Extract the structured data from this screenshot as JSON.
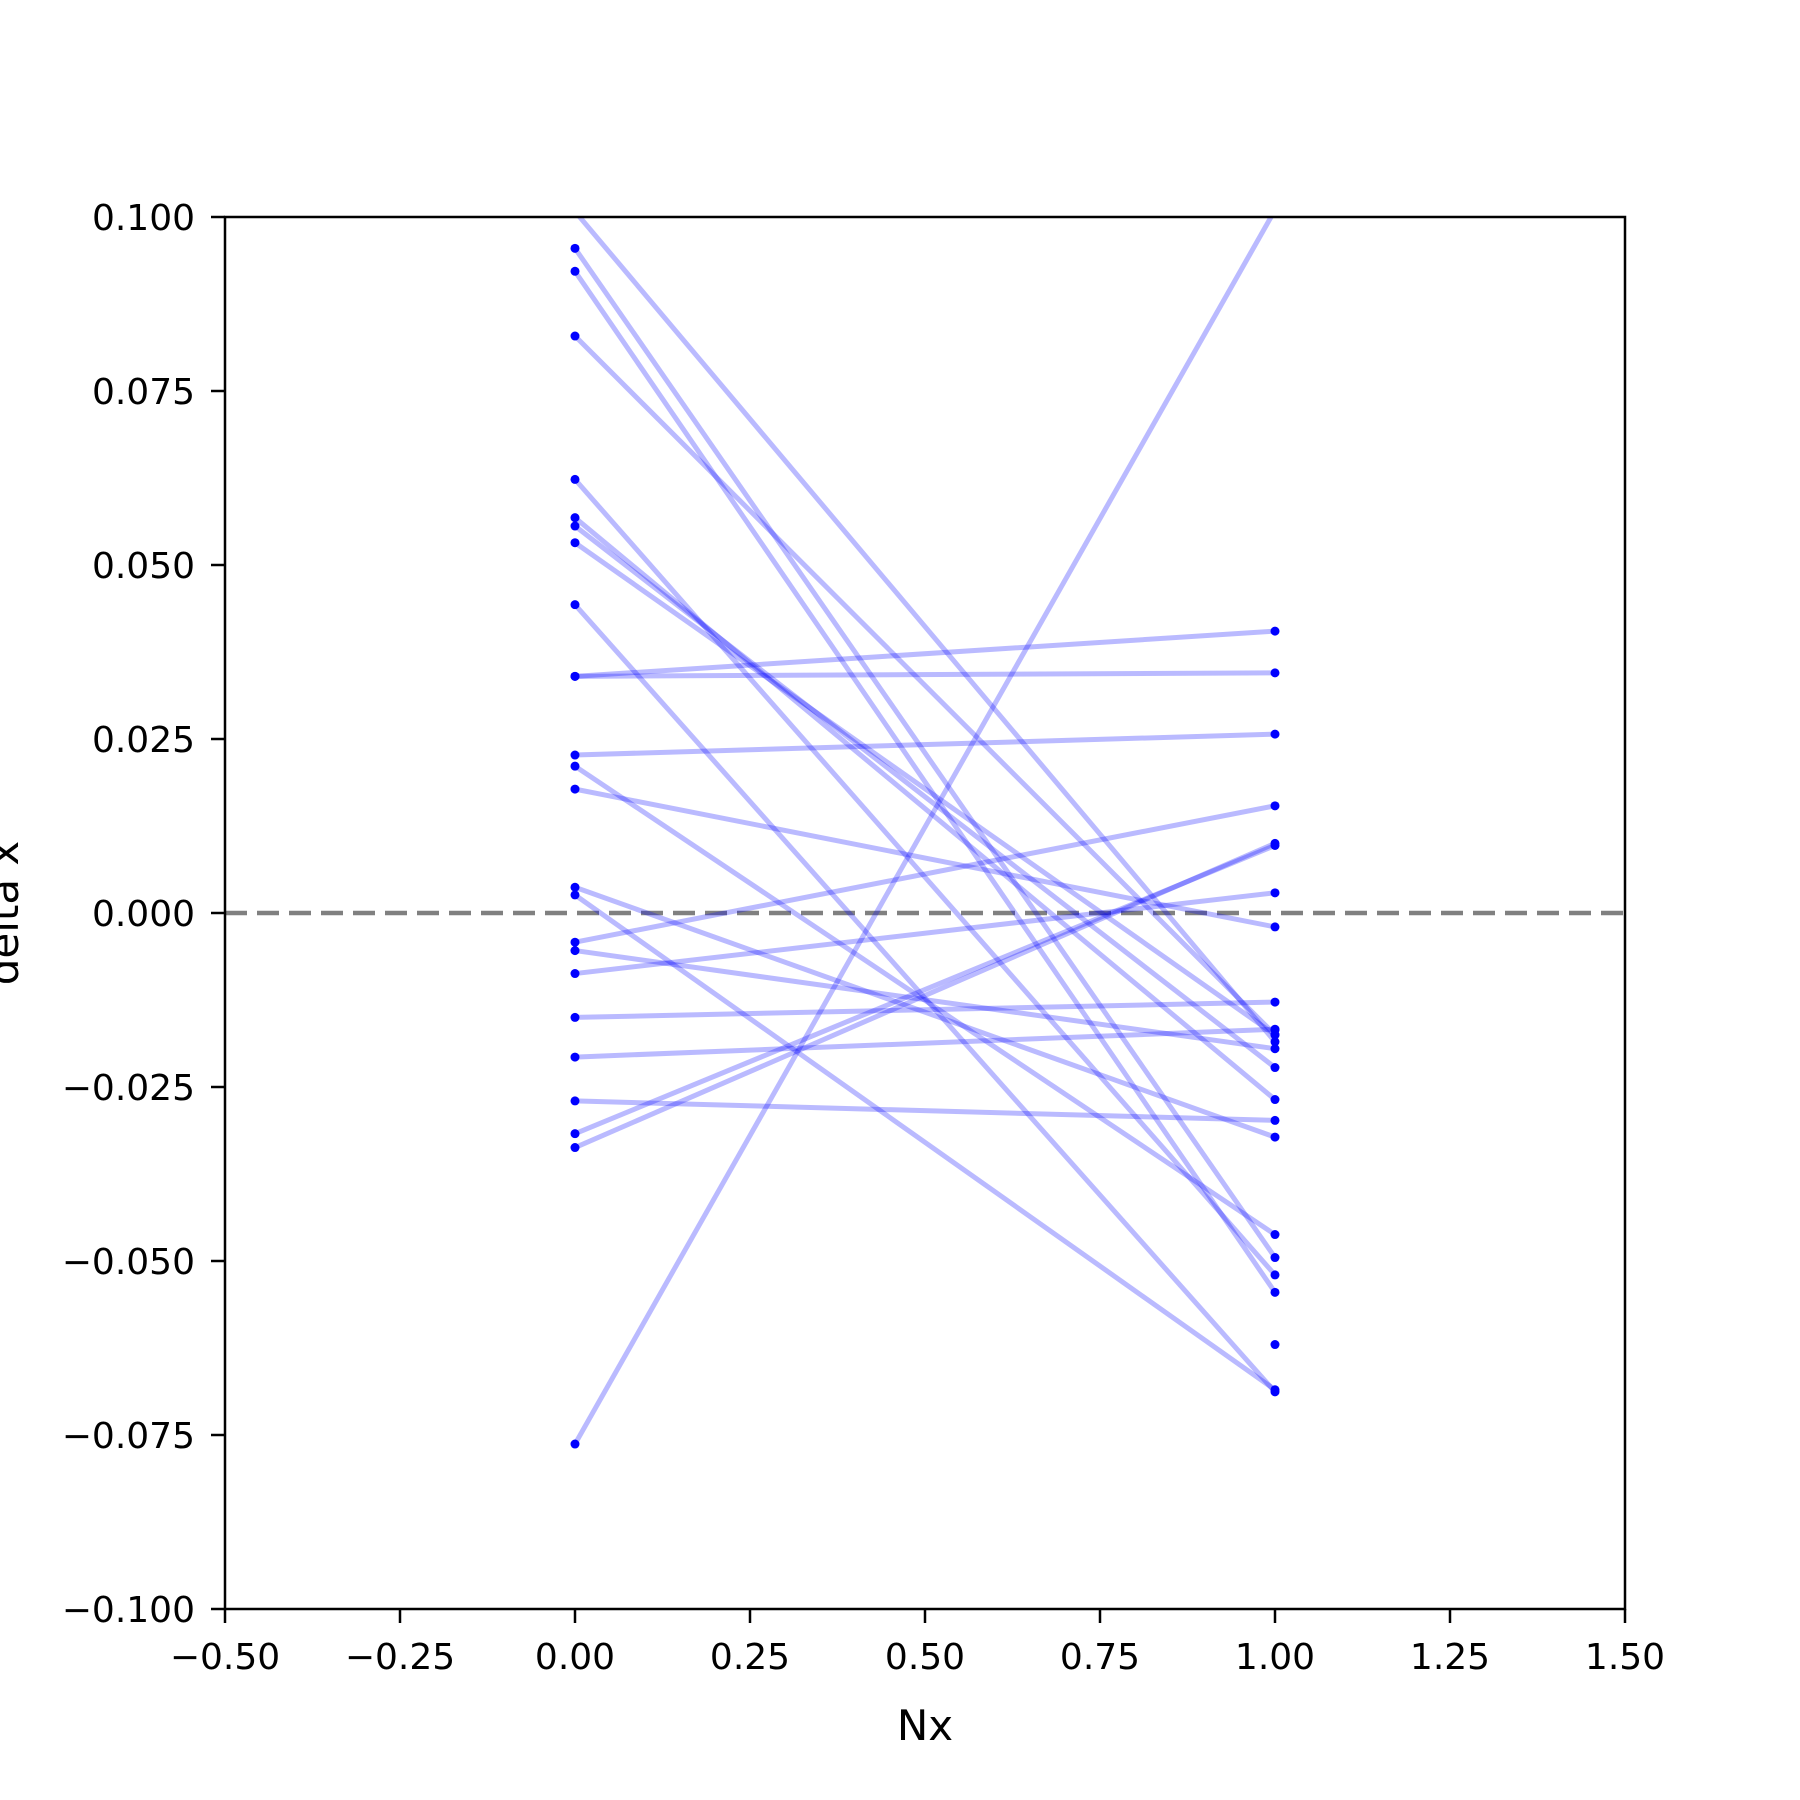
{
  "chart_data": {
    "type": "line",
    "title": "",
    "xlabel": "Nx",
    "ylabel": "delta x",
    "xlim": [
      -0.5,
      1.5
    ],
    "ylim": [
      -0.1,
      0.1
    ],
    "xticks": [
      -0.5,
      -0.25,
      0.0,
      0.25,
      0.5,
      0.75,
      1.0,
      1.25,
      1.5
    ],
    "xtick_labels": [
      "−0.50",
      "−0.25",
      "0.00",
      "0.25",
      "0.50",
      "0.75",
      "1.00",
      "1.25",
      "1.50"
    ],
    "yticks": [
      -0.1,
      -0.075,
      -0.05,
      -0.025,
      0.0,
      0.025,
      0.05,
      0.075,
      0.1
    ],
    "ytick_labels": [
      "−0.100",
      "−0.075",
      "−0.050",
      "−0.025",
      "0.000",
      "0.025",
      "0.050",
      "0.075",
      "0.100"
    ],
    "grid": false,
    "legend": false,
    "reference_line": {
      "y": 0.0,
      "style": "dashed",
      "color": "#808080"
    },
    "line_color": "#0000ff",
    "line_alpha": 0.27,
    "marker_color": "#0000ff",
    "pairs": [
      [
        0.1008,
        -0.0185
      ],
      [
        0.0955,
        -0.0495
      ],
      [
        0.0922,
        -0.0545
      ],
      [
        0.0829,
        -0.0175
      ],
      [
        0.0623,
        -0.052
      ],
      [
        0.0568,
        -0.0268
      ],
      [
        0.0556,
        -0.0222
      ],
      [
        0.0532,
        -0.0175
      ],
      [
        0.0443,
        -0.0688
      ],
      [
        0.034,
        0.0405
      ],
      [
        0.034,
        0.0345
      ],
      [
        0.0227,
        0.0257
      ],
      [
        0.0211,
        -0.0462
      ],
      [
        0.0178,
        -0.002
      ],
      [
        0.0037,
        -0.0322
      ],
      [
        0.0026,
        -0.0685
      ],
      [
        -0.0042,
        0.0154
      ],
      [
        -0.0054,
        -0.0195
      ],
      [
        -0.0087,
        0.0029
      ],
      [
        -0.015,
        -0.0128
      ],
      [
        -0.0207,
        -0.0167
      ],
      [
        -0.027,
        -0.0298
      ],
      [
        -0.0317,
        0.0097
      ],
      [
        -0.0337,
        0.01
      ],
      [
        -0.0763,
        0.101
      ],
      [
        null,
        -0.062
      ],
      [
        null,
        -0.0168
      ]
    ]
  }
}
